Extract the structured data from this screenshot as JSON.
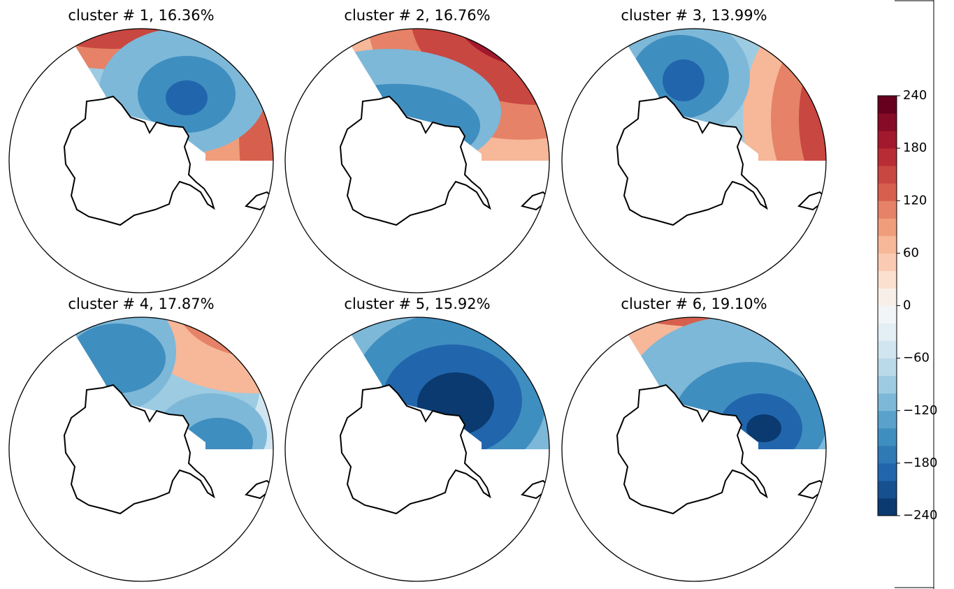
{
  "panels": [
    {
      "title": "cluster # 1, 16.36%"
    },
    {
      "title": "cluster # 2, 16.76%"
    },
    {
      "title": "cluster # 3, 13.99%"
    },
    {
      "title": "cluster # 4, 17.87%"
    },
    {
      "title": "cluster # 5, 15.92%"
    },
    {
      "title": "cluster # 6, 19.10%"
    }
  ],
  "colorbar": {
    "lim": [
      -240,
      240
    ],
    "ticks": [
      240,
      180,
      120,
      60,
      0,
      {
        "value": -60,
        "label": "−60"
      },
      {
        "value": -120,
        "label": "−120"
      },
      {
        "value": -180,
        "label": "−180"
      },
      {
        "value": -240,
        "label": "−240"
      }
    ],
    "colors": [
      "#0a3a70",
      "#17508f",
      "#2166ac",
      "#2f79b5",
      "#3f8ec0",
      "#5aa1cb",
      "#7db8d8",
      "#9dcbe2",
      "#bad9e9",
      "#d1e5f0",
      "#e3eef5",
      "#f2f5f7",
      "#f9efe9",
      "#fbe0d0",
      "#fbcab2",
      "#f7b799",
      "#f09d7c",
      "#e58267",
      "#d6604d",
      "#c94741",
      "#b82d35",
      "#a2182d",
      "#860b26",
      "#67001f"
    ]
  }
}
